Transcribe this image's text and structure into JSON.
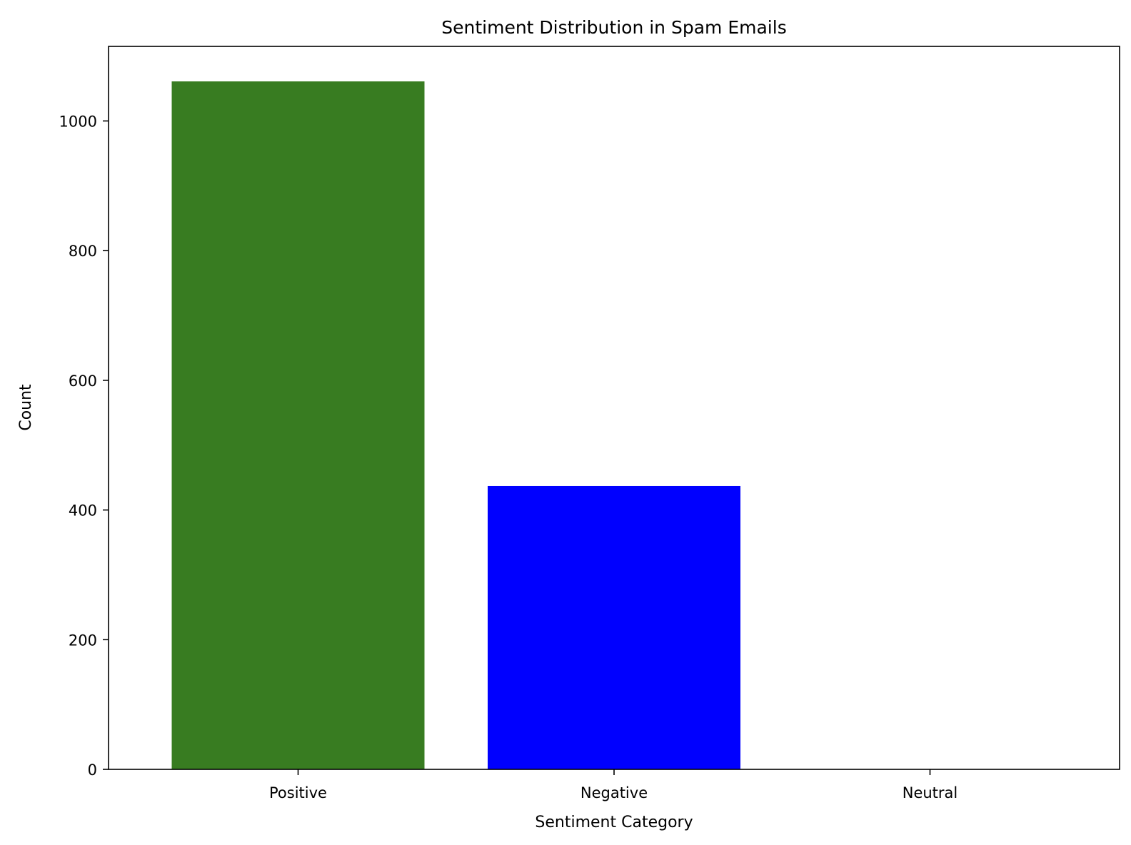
{
  "chart_data": {
    "type": "bar",
    "title": "Sentiment Distribution in Spam Emails",
    "xlabel": "Sentiment Category",
    "ylabel": "Count",
    "categories": [
      "Positive",
      "Negative",
      "Neutral"
    ],
    "values": [
      1061,
      437,
      0
    ],
    "colors": [
      "#387c21",
      "#0000ff",
      "#ffffff"
    ],
    "ylim": [
      0,
      1115
    ],
    "yticks": [
      0,
      200,
      400,
      600,
      800,
      1000
    ],
    "grid": false,
    "legend": "none"
  }
}
